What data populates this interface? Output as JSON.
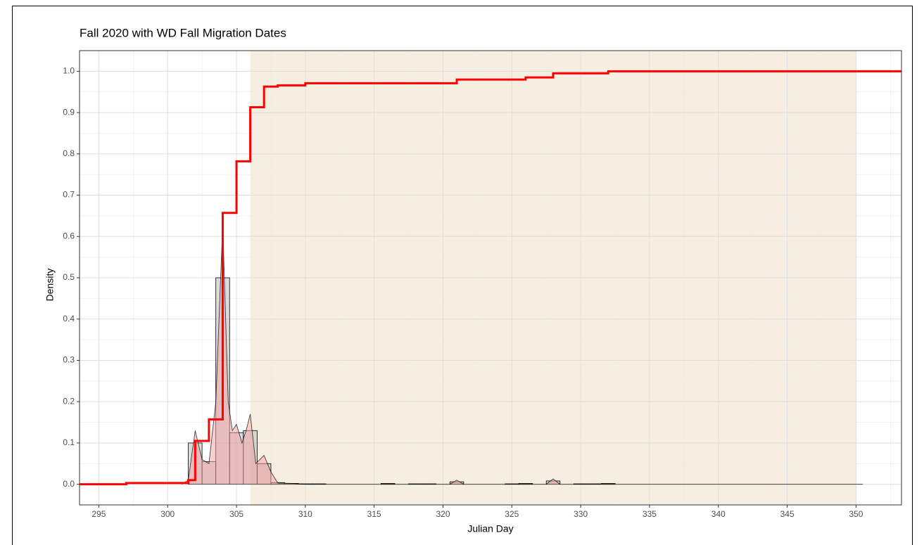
{
  "chart_data": {
    "type": "histogram",
    "title": "Fall 2020 with WD Fall Migration Dates",
    "xlabel": "Julian Day",
    "ylabel": "Density",
    "bins": [
      301.5,
      302.5,
      303.5,
      304.5,
      305.5,
      306.5,
      307.5,
      308.5,
      309.5,
      310.5,
      311.5,
      312.5,
      313.5,
      314.5,
      315.5,
      316.5,
      317.5,
      318.5,
      319.5,
      320.5,
      321.5,
      322.5,
      323.5,
      324.5,
      325.5,
      326.5,
      327.5,
      328.5,
      329.5,
      330.5,
      331.5,
      332.5
    ],
    "values": [
      0.1,
      0.055,
      0.5,
      0.125,
      0.13,
      0.05,
      0.004,
      0.002,
      0.001,
      0.001,
      0,
      0,
      0,
      0,
      0.002,
      0,
      0.001,
      0.001,
      0,
      0.006,
      0,
      0,
      0,
      0.001,
      0.002,
      0,
      0.008,
      0,
      0.001,
      0.001,
      0.002
    ],
    "color": "#bdbdbd",
    "density": {
      "x": [
        301,
        301.5,
        302,
        302.5,
        303,
        303.5,
        304,
        304.4,
        304.7,
        305,
        305.4,
        305.7,
        306,
        306.4,
        306.7,
        307,
        307.5,
        308,
        309,
        310,
        320.5,
        321,
        321.5,
        327.5,
        328,
        328.5,
        332.5,
        350.5
      ],
      "values": [
        0,
        0.01,
        0.13,
        0.06,
        0.05,
        0.2,
        0.63,
        0.2,
        0.13,
        0.145,
        0.1,
        0.13,
        0.17,
        0.05,
        0.06,
        0.07,
        0.03,
        0.003,
        0.002,
        0,
        0,
        0.01,
        0,
        0,
        0.013,
        0,
        0,
        0
      ],
      "color": "#f4a0a0"
    },
    "ecdf": {
      "x": [
        297,
        301.5,
        302,
        303,
        304,
        305,
        306,
        307,
        308,
        310,
        321,
        326,
        328,
        332
      ],
      "values": [
        0.003,
        0.01,
        0.105,
        0.157,
        0.657,
        0.782,
        0.913,
        0.963,
        0.966,
        0.971,
        0.98,
        0.985,
        0.995,
        1.0
      ],
      "color": "#ff0000"
    },
    "shaded_region": {
      "range": [
        306,
        350
      ],
      "color": "#f3e8d6"
    },
    "xlim": [
      293.6,
      353.3
    ],
    "ylim": [
      -0.05,
      1.05
    ],
    "xticks": [
      295,
      300,
      305,
      310,
      315,
      320,
      325,
      330,
      335,
      340,
      345,
      350
    ],
    "yticks": [
      {
        "value": 0,
        "label": "0.0"
      },
      {
        "value": 0.1,
        "label": "0.1"
      },
      {
        "value": 0.2,
        "label": "0.2"
      },
      {
        "value": 0.3,
        "label": "0.3"
      },
      {
        "value": 0.4,
        "label": "0.4"
      },
      {
        "value": 0.5,
        "label": "0.5"
      },
      {
        "value": 0.6,
        "label": "0.6"
      },
      {
        "value": 0.7,
        "label": "0.7"
      },
      {
        "value": 0.8,
        "label": "0.8"
      },
      {
        "value": 0.9,
        "label": "0.9"
      },
      {
        "value": 1,
        "label": "1.0"
      }
    ],
    "minor_xticks": [
      297.5,
      302.5,
      307.5,
      312.5,
      317.5,
      322.5,
      327.5,
      332.5,
      337.5,
      342.5,
      347.5,
      352.5
    ],
    "minor_yticks": [
      -0.05,
      0.05,
      0.15,
      0.25,
      0.35,
      0.45,
      0.55,
      0.65,
      0.75,
      0.85,
      0.95,
      1.05
    ],
    "grid": true
  }
}
